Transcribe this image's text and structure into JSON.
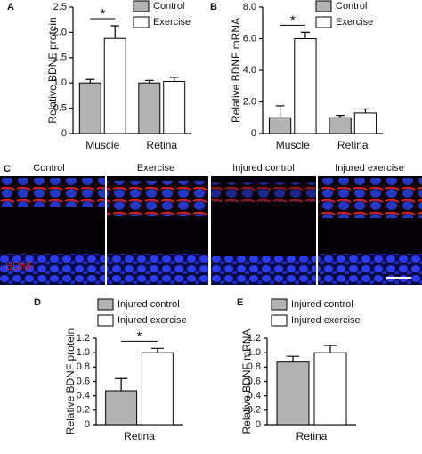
{
  "chart_data": [
    {
      "type": "bar",
      "panel": "A",
      "ylabel": "Relative BDNF protein",
      "categories": [
        "Muscle",
        "Retina"
      ],
      "series": [
        {
          "name": "Control",
          "color": "#b3b3b3",
          "values": [
            1.0,
            1.0
          ],
          "errors": [
            0.07,
            0.05
          ]
        },
        {
          "name": "Exercise",
          "color": "#ffffff",
          "values": [
            1.88,
            1.03
          ],
          "errors": [
            0.25,
            0.08
          ]
        }
      ],
      "ylim": [
        0,
        2.5
      ],
      "yticks": [
        0,
        0.5,
        {
          "value": 1,
          "label": "1.0"
        },
        1.5,
        {
          "value": 2,
          "label": "2.0"
        },
        2.5
      ],
      "significance": "*"
    },
    {
      "type": "bar",
      "panel": "B",
      "ylabel": "Relative BDNF mRNA",
      "categories": [
        "Muscle",
        "Retina"
      ],
      "series": [
        {
          "name": "Control",
          "color": "#b3b3b3",
          "values": [
            1.0,
            1.0
          ],
          "errors": [
            0.75,
            0.15
          ]
        },
        {
          "name": "Exercise",
          "color": "#ffffff",
          "values": [
            6.0,
            1.3
          ],
          "errors": [
            0.4,
            0.25
          ]
        }
      ],
      "ylim": [
        0,
        8
      ],
      "yticks": [
        0,
        {
          "value": 2,
          "label": "2.0"
        },
        {
          "value": 4,
          "label": "4.0"
        },
        {
          "value": 6,
          "label": "6.0"
        },
        {
          "value": 8,
          "label": "8.0"
        }
      ],
      "significance": "*"
    },
    {
      "type": "bar",
      "panel": "D",
      "ylabel": "Relative BDNF protein",
      "categories": [
        "Retina"
      ],
      "series": [
        {
          "name": "Injured control",
          "color": "#b3b3b3",
          "values": [
            0.47
          ],
          "errors": [
            0.17
          ]
        },
        {
          "name": "Injured exercise",
          "color": "#ffffff",
          "values": [
            1.0
          ],
          "errors": [
            0.06
          ]
        }
      ],
      "ylim": [
        0,
        1.2
      ],
      "yticks": [
        0,
        0.2,
        0.4,
        0.6,
        0.8,
        {
          "value": 1,
          "label": "1.0"
        },
        1.2
      ],
      "significance": "*"
    },
    {
      "type": "bar",
      "panel": "E",
      "ylabel": "Relative BDNF mRNA",
      "categories": [
        "Retina"
      ],
      "series": [
        {
          "name": "Injured control",
          "color": "#b3b3b3",
          "values": [
            0.87
          ],
          "errors": [
            0.08
          ]
        },
        {
          "name": "Injured exercise",
          "color": "#ffffff",
          "values": [
            1.0
          ],
          "errors": [
            0.1
          ]
        }
      ],
      "ylim": [
        0,
        1.2
      ],
      "yticks": [
        0,
        0.2,
        0.4,
        0.6,
        0.8,
        {
          "value": 1,
          "label": "1.0"
        },
        1.2
      ]
    }
  ],
  "micrograph": {
    "panel": "C",
    "labels": [
      "Control",
      "Exercise",
      "Injured control",
      "Injured exercise"
    ],
    "stain": "BDNF"
  }
}
